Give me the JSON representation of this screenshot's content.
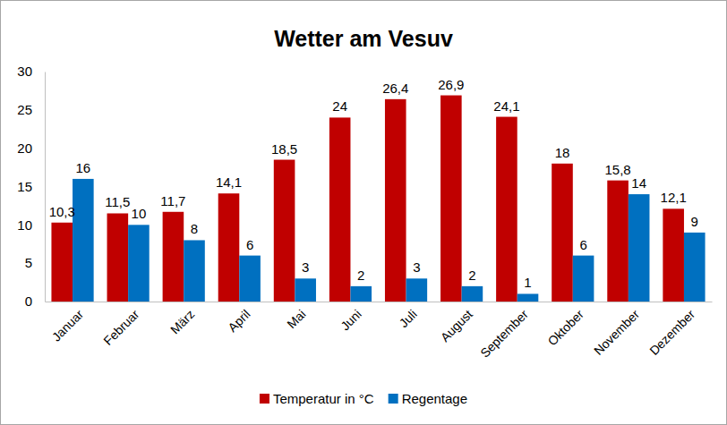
{
  "chart_data": {
    "type": "bar",
    "title": "Wetter am Vesuv",
    "categories": [
      "Januar",
      "Februar",
      "März",
      "April",
      "Mai",
      "Juni",
      "Juli",
      "August",
      "September",
      "Oktober",
      "November",
      "Dezember"
    ],
    "series": [
      {
        "name": "Temperatur in °C",
        "color": "#c00000",
        "values": [
          10.3,
          11.5,
          11.7,
          14.1,
          18.5,
          24,
          26.4,
          26.9,
          24.1,
          18,
          15.8,
          12.1
        ],
        "value_labels": [
          "10,3",
          "11,5",
          "11,7",
          "14,1",
          "18,5",
          "24",
          "26,4",
          "26,9",
          "24,1",
          "18",
          "15,8",
          "12,1"
        ]
      },
      {
        "name": "Regentage",
        "color": "#0070c0",
        "values": [
          16,
          10,
          8,
          6,
          3,
          2,
          3,
          2,
          1,
          6,
          14,
          9
        ]
      }
    ],
    "ylim": [
      0,
      30
    ],
    "yticks": [
      0,
      5,
      10,
      15,
      20,
      25,
      30
    ],
    "grid": false,
    "legend": "bottom",
    "data_labels": true
  }
}
